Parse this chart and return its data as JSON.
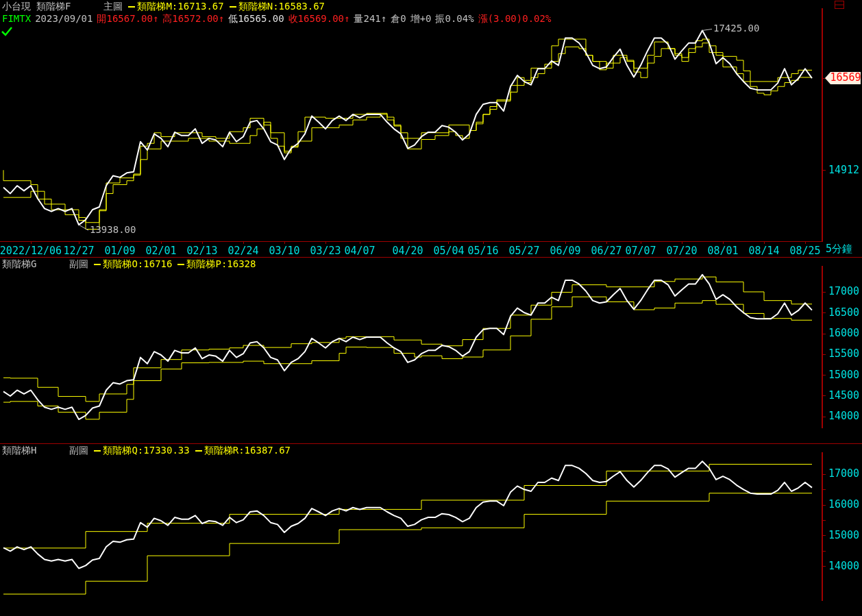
{
  "chart_data": [
    {
      "type": "line",
      "title": "小台現",
      "subtitle": "類階梯F",
      "xlabel": "5分鐘",
      "legend": "top left",
      "marker": "none",
      "annotations": [
        "主圖",
        "FIMTX",
        "2023/09/01",
        "開16567.00↑",
        "高16572.00↑",
        "低16565.00",
        "收16569.00↑",
        "量241↑",
        "倉0",
        "增+0",
        "振0.04%",
        "漲(3.00)0.02%",
        "17425.00",
        "13938.00"
      ],
      "ylim": [
        13645,
        17812
      ],
      "yticks": [
        14912,
        16569
      ],
      "categories": [
        null,
        null,
        null,
        null,
        "2022/12/06",
        null,
        null,
        null,
        null,
        null,
        null,
        "12/27",
        null,
        null,
        null,
        null,
        null,
        "01/09",
        null,
        null,
        null,
        null,
        null,
        "02/01",
        null,
        null,
        null,
        null,
        null,
        "02/13",
        null,
        null,
        null,
        null,
        null,
        "02/24",
        null,
        null,
        null,
        null,
        null,
        "03/10",
        null,
        null,
        null,
        null,
        null,
        "03/23",
        null,
        null,
        null,
        null,
        "04/07",
        null,
        null,
        null,
        null,
        null,
        null,
        "04/20",
        null,
        null,
        null,
        null,
        null,
        "05/04",
        null,
        null,
        null,
        null,
        "05/16",
        null,
        null,
        null,
        null,
        null,
        "05/27",
        null,
        null,
        null,
        null,
        null,
        "06/09",
        null,
        null,
        null,
        null,
        null,
        "06/27",
        null,
        null,
        null,
        null,
        "07/07",
        null,
        null,
        null,
        null,
        null,
        "07/20",
        null,
        null,
        null,
        null,
        null,
        "08/01",
        null,
        null,
        null,
        null,
        null,
        "08/14",
        null,
        null,
        null,
        null,
        null,
        "08/25",
        null,
        null
      ],
      "series": [
        {
          "type": "line",
          "color": "#ffffff",
          "values": [
            14610,
            14500,
            14640,
            14550,
            14640,
            14410,
            14230,
            14180,
            14230,
            14180,
            14230,
            13938,
            14030,
            14210,
            14260,
            14640,
            14820,
            14790,
            14870,
            14890,
            15430,
            15280,
            15570,
            15490,
            15340,
            15600,
            15540,
            15540,
            15660,
            15400,
            15490,
            15460,
            15340,
            15600,
            15430,
            15520,
            15780,
            15810,
            15660,
            15430,
            15370,
            15110,
            15310,
            15400,
            15570,
            15890,
            15780,
            15660,
            15810,
            15890,
            15810,
            15920,
            15860,
            15920,
            15920,
            15920,
            15780,
            15660,
            15570,
            15310,
            15370,
            15520,
            15600,
            15600,
            15720,
            15690,
            15600,
            15460,
            15570,
            15920,
            16100,
            16130,
            16130,
            15980,
            16420,
            16620,
            16510,
            16450,
            16740,
            16740,
            16880,
            16800,
            17290,
            17290,
            17200,
            17030,
            16800,
            16740,
            16770,
            16940,
            17090,
            16800,
            16590,
            16800,
            17060,
            17290,
            17290,
            17180,
            16910,
            17060,
            17200,
            17200,
            17425,
            17200,
            16830,
            16940,
            16830,
            16650,
            16510,
            16390,
            16360,
            16360,
            16360,
            16480,
            16740,
            16450,
            16560,
            16740,
            16569,
            null
          ]
        },
        {
          "name": "類階梯M:16713.67",
          "type": "step",
          "color": "#ffff00",
          "values": [
            14920,
            14730,
            14730,
            14730,
            14730,
            14660,
            14540,
            14310,
            14310,
            14310,
            14210,
            14210,
            14070,
            13980,
            13980,
            14210,
            14690,
            14690,
            14780,
            14780,
            14850,
            15350,
            15400,
            15590,
            15520,
            15520,
            15590,
            15590,
            15590,
            15590,
            15520,
            15520,
            15490,
            15490,
            15610,
            15610,
            15680,
            15850,
            15850,
            15730,
            15490,
            15350,
            15260,
            15350,
            15610,
            15870,
            15870,
            15870,
            15850,
            15850,
            15850,
            15850,
            15920,
            15920,
            15940,
            15940,
            15940,
            15870,
            15730,
            15590,
            15490,
            15490,
            15590,
            15590,
            15590,
            15590,
            15730,
            15730,
            15730,
            15630,
            15780,
            15920,
            16060,
            16180,
            16180,
            16440,
            16580,
            16530,
            16750,
            16750,
            16820,
            17150,
            17270,
            17270,
            17270,
            17270,
            16980,
            16870,
            16720,
            16840,
            16980,
            16980,
            16890,
            16750,
            16750,
            16980,
            17220,
            17220,
            17100,
            17010,
            16940,
            17100,
            17240,
            17270,
            17030,
            17030,
            16960,
            16960,
            16890,
            16700,
            16510,
            16510,
            16510,
            16510,
            16580,
            16580,
            16650,
            16713.67,
            16713.67,
            null
          ]
        },
        {
          "name": "類階梯N:16583.67",
          "type": "step",
          "color": "#ffff00",
          "values": [
            14430,
            14430,
            14430,
            14430,
            14430,
            14540,
            14400,
            14400,
            14210,
            14210,
            14120,
            14120,
            14020,
            13860,
            13860,
            14190,
            14500,
            14660,
            14660,
            14730,
            14830,
            15110,
            15300,
            15300,
            15440,
            15440,
            15440,
            15440,
            15490,
            15490,
            15490,
            15440,
            15440,
            15440,
            15400,
            15400,
            15400,
            15540,
            15660,
            15780,
            15590,
            15590,
            15230,
            15330,
            15440,
            15440,
            15680,
            15680,
            15680,
            15680,
            15730,
            15730,
            15820,
            15820,
            15870,
            15870,
            15920,
            15820,
            15710,
            15490,
            15300,
            15300,
            15470,
            15470,
            15540,
            15540,
            15610,
            15540,
            15490,
            15630,
            15750,
            15920,
            16010,
            16160,
            16160,
            16320,
            16440,
            16490,
            16580,
            16650,
            16750,
            16870,
            17010,
            17130,
            17130,
            17100,
            16980,
            16870,
            16870,
            16750,
            16840,
            16940,
            16870,
            16680,
            16580,
            16840,
            16960,
            17100,
            17100,
            16980,
            16870,
            17030,
            17130,
            17200,
            17150,
            16980,
            16770,
            16770,
            16650,
            16510,
            16420,
            16300,
            16270,
            16340,
            16420,
            16490,
            16530,
            16583.67,
            16583.67,
            null
          ]
        }
      ]
    },
    {
      "type": "line",
      "title": "類階梯G",
      "legend": "top left",
      "marker": "none",
      "tick_labels": "y",
      "annotations": [
        "副圖"
      ],
      "ylim": [
        13740,
        17620
      ],
      "yticks": [
        14000,
        14500,
        15000,
        15500,
        16000,
        16500,
        17000
      ],
      "categories": [
        null,
        null,
        null,
        null,
        null,
        null,
        null,
        null,
        null,
        null,
        null,
        null,
        null,
        null,
        null,
        null,
        null,
        null,
        null,
        null,
        null,
        null,
        null,
        null,
        null,
        null,
        null,
        null,
        null,
        null,
        null,
        null,
        null,
        null,
        null,
        null,
        null,
        null,
        null,
        null,
        null,
        null,
        null,
        null,
        null,
        null,
        null,
        null,
        null,
        null,
        null,
        null,
        null,
        null,
        null,
        null,
        null,
        null,
        null,
        null,
        null,
        null,
        null,
        null,
        null,
        null,
        null,
        null,
        null,
        null,
        null,
        null,
        null,
        null,
        null,
        null,
        null,
        null,
        null,
        null,
        null,
        null,
        null,
        null,
        null,
        null,
        null,
        null,
        null,
        null,
        null,
        null,
        null,
        null,
        null,
        null,
        null,
        null,
        null,
        null,
        null,
        null,
        null,
        null,
        null,
        null,
        null,
        null,
        null,
        null,
        null,
        null,
        null,
        null,
        null,
        null,
        null,
        null,
        null,
        null
      ],
      "series": [
        {
          "type": "line",
          "color": "#ffffff",
          "values": [
            14610,
            14500,
            14640,
            14550,
            14640,
            14410,
            14230,
            14180,
            14230,
            14180,
            14230,
            13938,
            14030,
            14210,
            14260,
            14640,
            14820,
            14790,
            14870,
            14890,
            15430,
            15280,
            15570,
            15490,
            15340,
            15600,
            15540,
            15540,
            15660,
            15400,
            15490,
            15460,
            15340,
            15600,
            15430,
            15520,
            15780,
            15810,
            15660,
            15430,
            15370,
            15110,
            15310,
            15400,
            15570,
            15890,
            15780,
            15660,
            15810,
            15890,
            15810,
            15920,
            15860,
            15920,
            15920,
            15920,
            15780,
            15660,
            15570,
            15310,
            15370,
            15520,
            15600,
            15600,
            15720,
            15690,
            15600,
            15460,
            15570,
            15920,
            16100,
            16130,
            16130,
            15980,
            16420,
            16620,
            16510,
            16450,
            16740,
            16740,
            16880,
            16800,
            17290,
            17290,
            17200,
            17030,
            16800,
            16740,
            16770,
            16940,
            17090,
            16800,
            16590,
            16800,
            17060,
            17290,
            17290,
            17180,
            16910,
            17060,
            17200,
            17200,
            17425,
            17200,
            16830,
            16940,
            16830,
            16650,
            16510,
            16390,
            16360,
            16360,
            16360,
            16480,
            16740,
            16450,
            16560,
            16740,
            16569,
            null
          ]
        },
        {
          "name": "類階梯O:16716",
          "type": "step",
          "color": "#ffff00",
          "values": [
            14940,
            14940,
            14930,
            14930,
            14930,
            14930,
            14710,
            14710,
            14710,
            14490,
            14490,
            14490,
            14490,
            14370,
            14370,
            14550,
            14550,
            14550,
            14550,
            14780,
            15180,
            15180,
            15180,
            15180,
            15380,
            15380,
            15380,
            15610,
            15610,
            15610,
            15610,
            15630,
            15630,
            15630,
            15660,
            15660,
            15720,
            15720,
            15720,
            15670,
            15670,
            15670,
            15670,
            15760,
            15760,
            15760,
            15790,
            15790,
            15790,
            15790,
            15890,
            15930,
            15930,
            15930,
            15930,
            15930,
            15930,
            15930,
            15850,
            15850,
            15850,
            15850,
            15750,
            15750,
            15750,
            15710,
            15710,
            15710,
            15860,
            15860,
            15860,
            16130,
            16130,
            16130,
            16130,
            16450,
            16450,
            16450,
            16690,
            16690,
            16690,
            17000,
            17000,
            17000,
            17180,
            17180,
            17180,
            17180,
            17180,
            17130,
            17130,
            17130,
            17130,
            17130,
            17130,
            17130,
            17260,
            17260,
            17260,
            17320,
            17320,
            17320,
            17320,
            17370,
            17370,
            17250,
            17250,
            17250,
            17250,
            17010,
            17010,
            17010,
            16800,
            16800,
            16800,
            16800,
            16716,
            16716,
            16716,
            null
          ]
        },
        {
          "name": "類階梯P:16328",
          "type": "step",
          "color": "#ffff00",
          "values": [
            14350,
            14350,
            14370,
            14370,
            14370,
            14370,
            14260,
            14260,
            14260,
            14110,
            14110,
            14110,
            14110,
            13940,
            13940,
            14110,
            14110,
            14110,
            14110,
            14420,
            14870,
            14870,
            14870,
            14870,
            15150,
            15150,
            15150,
            15300,
            15300,
            15300,
            15300,
            15310,
            15310,
            15310,
            15310,
            15310,
            15340,
            15340,
            15340,
            15280,
            15280,
            15280,
            15280,
            15280,
            15280,
            15280,
            15350,
            15350,
            15350,
            15350,
            15530,
            15680,
            15680,
            15680,
            15670,
            15670,
            15670,
            15670,
            15530,
            15530,
            15530,
            15440,
            15470,
            15470,
            15470,
            15400,
            15400,
            15400,
            15440,
            15440,
            15440,
            15610,
            15610,
            15610,
            15610,
            15950,
            15950,
            15950,
            16350,
            16350,
            16350,
            16650,
            16650,
            16650,
            16890,
            16890,
            16890,
            16890,
            16890,
            16770,
            16770,
            16770,
            16770,
            16580,
            16580,
            16580,
            16620,
            16620,
            16620,
            16740,
            16740,
            16740,
            16740,
            16800,
            16800,
            16710,
            16710,
            16710,
            16710,
            16490,
            16490,
            16490,
            16370,
            16370,
            16370,
            16370,
            16328,
            16328,
            16328,
            null
          ]
        }
      ]
    },
    {
      "type": "line",
      "title": "類階梯H",
      "legend": "top left",
      "marker": "none",
      "tick_labels": "y",
      "annotations": [
        "副圖"
      ],
      "ylim": [
        12900,
        17700
      ],
      "yticks": [
        {
          "value": 14000,
          "label": "14000"
        },
        {
          "value": 14500,
          "label": null
        },
        {
          "value": 15000,
          "label": "15000"
        },
        {
          "value": 15500,
          "label": null
        },
        {
          "value": 16000,
          "label": "16000"
        },
        {
          "value": 16500,
          "label": null
        },
        {
          "value": 17000,
          "label": "17000"
        }
      ],
      "categories": [
        null,
        null,
        null,
        null,
        null,
        null,
        null,
        null,
        null,
        null,
        null,
        null,
        null,
        null,
        null,
        null,
        null,
        null,
        null,
        null,
        null,
        null,
        null,
        null,
        null,
        null,
        null,
        null,
        null,
        null,
        null,
        null,
        null,
        null,
        null,
        null,
        null,
        null,
        null,
        null,
        null,
        null,
        null,
        null,
        null,
        null,
        null,
        null,
        null,
        null,
        null,
        null,
        null,
        null,
        null,
        null,
        null,
        null,
        null,
        null,
        null,
        null,
        null,
        null,
        null,
        null,
        null,
        null,
        null,
        null,
        null,
        null,
        null,
        null,
        null,
        null,
        null,
        null,
        null,
        null,
        null,
        null,
        null,
        null,
        null,
        null,
        null,
        null,
        null,
        null,
        null,
        null,
        null,
        null,
        null,
        null,
        null,
        null,
        null,
        null,
        null,
        null,
        null,
        null,
        null,
        null,
        null,
        null,
        null,
        null,
        null,
        null,
        null,
        null,
        null,
        null,
        null,
        null,
        null,
        null
      ],
      "series": [
        {
          "type": "line",
          "color": "#ffffff",
          "values": [
            14610,
            14500,
            14640,
            14550,
            14640,
            14410,
            14230,
            14180,
            14230,
            14180,
            14230,
            13938,
            14030,
            14210,
            14260,
            14640,
            14820,
            14790,
            14870,
            14890,
            15430,
            15280,
            15570,
            15490,
            15340,
            15600,
            15540,
            15540,
            15660,
            15400,
            15490,
            15460,
            15340,
            15600,
            15430,
            15520,
            15780,
            15810,
            15660,
            15430,
            15370,
            15110,
            15310,
            15400,
            15570,
            15890,
            15780,
            15660,
            15810,
            15890,
            15810,
            15920,
            15860,
            15920,
            15920,
            15920,
            15780,
            15660,
            15570,
            15310,
            15370,
            15520,
            15600,
            15600,
            15720,
            15690,
            15600,
            15460,
            15570,
            15920,
            16100,
            16130,
            16130,
            15980,
            16420,
            16620,
            16510,
            16450,
            16740,
            16740,
            16880,
            16800,
            17290,
            17290,
            17200,
            17030,
            16800,
            16740,
            16770,
            16940,
            17090,
            16800,
            16590,
            16800,
            17060,
            17290,
            17290,
            17180,
            16910,
            17060,
            17200,
            17200,
            17425,
            17200,
            16830,
            16940,
            16830,
            16650,
            16510,
            16390,
            16360,
            16360,
            16360,
            16480,
            16740,
            16450,
            16560,
            16740,
            16569,
            null
          ]
        },
        {
          "name": "類階梯Q:17330.33",
          "type": "step",
          "color": "#ffff00",
          "values": [
            14600,
            14600,
            14600,
            14600,
            14600,
            14600,
            14600,
            14600,
            14600,
            14600,
            14600,
            14600,
            14600,
            15140,
            15140,
            15140,
            15140,
            15140,
            15140,
            15140,
            15140,
            15140,
            15410,
            15410,
            15410,
            15410,
            15410,
            15410,
            15410,
            15410,
            15410,
            15410,
            15410,
            15410,
            15700,
            15700,
            15700,
            15700,
            15700,
            15700,
            15700,
            15700,
            15700,
            15700,
            15700,
            15700,
            15700,
            15700,
            15700,
            15700,
            15860,
            15860,
            15860,
            15860,
            15860,
            15860,
            15860,
            15860,
            15860,
            15860,
            15860,
            15860,
            16160,
            16160,
            16160,
            16160,
            16160,
            16160,
            16160,
            16160,
            16160,
            16160,
            16160,
            16160,
            16160,
            16160,
            16160,
            16640,
            16640,
            16640,
            16640,
            16640,
            16640,
            16640,
            16640,
            16640,
            16640,
            16640,
            16640,
            17110,
            17110,
            17110,
            17110,
            17110,
            17110,
            17110,
            17110,
            17110,
            17110,
            17110,
            17110,
            17110,
            17110,
            17110,
            17330.33,
            17330.33,
            17330.33,
            17330.33,
            17330.33,
            17330.33,
            17330.33,
            17330.33,
            17330.33,
            17330.33,
            17330.33,
            17330.33,
            17330.33,
            17330.33,
            17330.33,
            null
          ]
        },
        {
          "name": "類階梯R:16387.67",
          "type": "step",
          "color": "#ffff00",
          "values": [
            13100,
            13100,
            13100,
            13100,
            13100,
            13100,
            13100,
            13100,
            13100,
            13100,
            13100,
            13100,
            13100,
            13520,
            13520,
            13520,
            13520,
            13520,
            13520,
            13520,
            13520,
            13520,
            14350,
            14350,
            14350,
            14350,
            14350,
            14350,
            14350,
            14350,
            14350,
            14350,
            14350,
            14350,
            14750,
            14750,
            14750,
            14750,
            14750,
            14750,
            14750,
            14750,
            14750,
            14750,
            14750,
            14750,
            14750,
            14750,
            14750,
            14750,
            15200,
            15200,
            15200,
            15200,
            15200,
            15200,
            15200,
            15200,
            15200,
            15200,
            15200,
            15200,
            15260,
            15260,
            15260,
            15260,
            15260,
            15260,
            15260,
            15260,
            15260,
            15260,
            15260,
            15260,
            15260,
            15260,
            15260,
            15700,
            15700,
            15700,
            15700,
            15700,
            15700,
            15700,
            15700,
            15700,
            15700,
            15700,
            15700,
            16130,
            16130,
            16130,
            16130,
            16130,
            16130,
            16130,
            16130,
            16130,
            16130,
            16130,
            16130,
            16130,
            16130,
            16130,
            16387.67,
            16387.67,
            16387.67,
            16387.67,
            16387.67,
            16387.67,
            16387.67,
            16387.67,
            16387.67,
            16387.67,
            16387.67,
            16387.67,
            16387.67,
            16387.67,
            16387.67,
            null
          ]
        }
      ]
    }
  ]
}
